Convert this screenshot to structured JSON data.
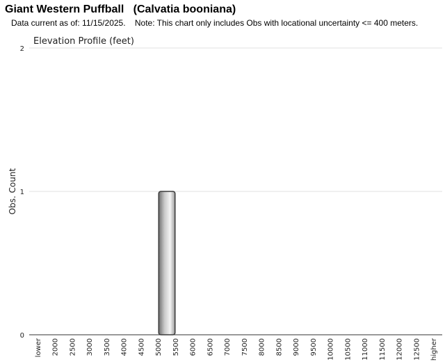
{
  "header": {
    "title": "Giant Western Puffball   (Calvatia booniana)",
    "subtitle": "Data current as of: 11/15/2025.    Note: This chart only includes Obs with locational uncertainty <= 400 meters."
  },
  "chart_data": {
    "type": "bar",
    "title": "Elevation Profile (feet)",
    "xlabel": "",
    "ylabel": "Obs. Count",
    "ylim": [
      0,
      2
    ],
    "yticks": [
      "0",
      "1",
      "2"
    ],
    "grid": true,
    "categories": [
      "lower",
      "2000",
      "2500",
      "3000",
      "3500",
      "4000",
      "4500",
      "5000",
      "5500",
      "6000",
      "6500",
      "7000",
      "7500",
      "8000",
      "8500",
      "9000",
      "9500",
      "10000",
      "10500",
      "11000",
      "11500",
      "12000",
      "12500",
      "higher"
    ],
    "values": [
      0,
      0,
      0,
      0,
      0,
      0,
      0,
      1,
      0,
      0,
      0,
      0,
      0,
      0,
      0,
      0,
      0,
      0,
      0,
      0,
      0,
      0,
      0,
      0
    ],
    "bar_color": "#a9a9a9"
  }
}
